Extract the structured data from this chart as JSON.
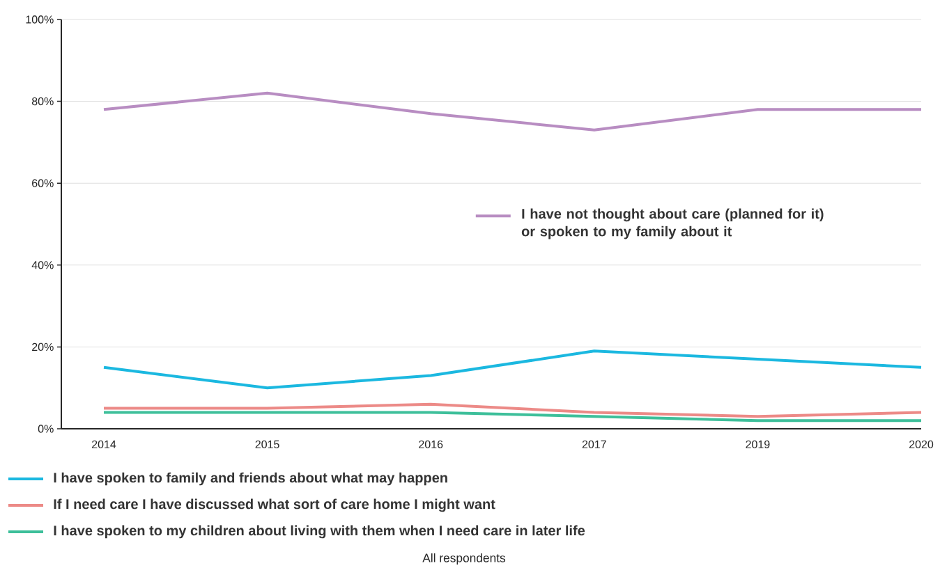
{
  "chart_data": {
    "type": "line",
    "categories": [
      "2014",
      "2015",
      "2016",
      "2017",
      "2019",
      "2020"
    ],
    "series": [
      {
        "name": "I have not thought about care (planned for it) or spoken to my family about it",
        "color": "#b88dc2",
        "values": [
          78,
          82,
          77,
          73,
          78,
          78
        ]
      },
      {
        "name": "I have spoken to family and friends about what may happen",
        "color": "#1bb8e0",
        "values": [
          15,
          10,
          13,
          19,
          17,
          15
        ]
      },
      {
        "name": "If I need care I have discussed what sort of care home I might want",
        "color": "#ec8a87",
        "values": [
          5,
          5,
          6,
          4,
          3,
          4
        ]
      },
      {
        "name": "I have spoken to my children about living with them when I need care in later life",
        "color": "#3dbf9a",
        "values": [
          4,
          4,
          4,
          3,
          2,
          2
        ]
      }
    ],
    "ylim": [
      0,
      100
    ],
    "yticks": [
      {
        "value": 0,
        "label": "0%"
      },
      {
        "value": 20,
        "label": "20%"
      },
      {
        "value": 40,
        "label": "40%"
      },
      {
        "value": 60,
        "label": "60%"
      },
      {
        "value": 80,
        "label": "80%"
      },
      {
        "value": 100,
        "label": "100%"
      }
    ],
    "grid": "y",
    "legend": "bottom",
    "marker": "none",
    "line_style": "solid",
    "annotations": [
      "All respondents"
    ]
  }
}
